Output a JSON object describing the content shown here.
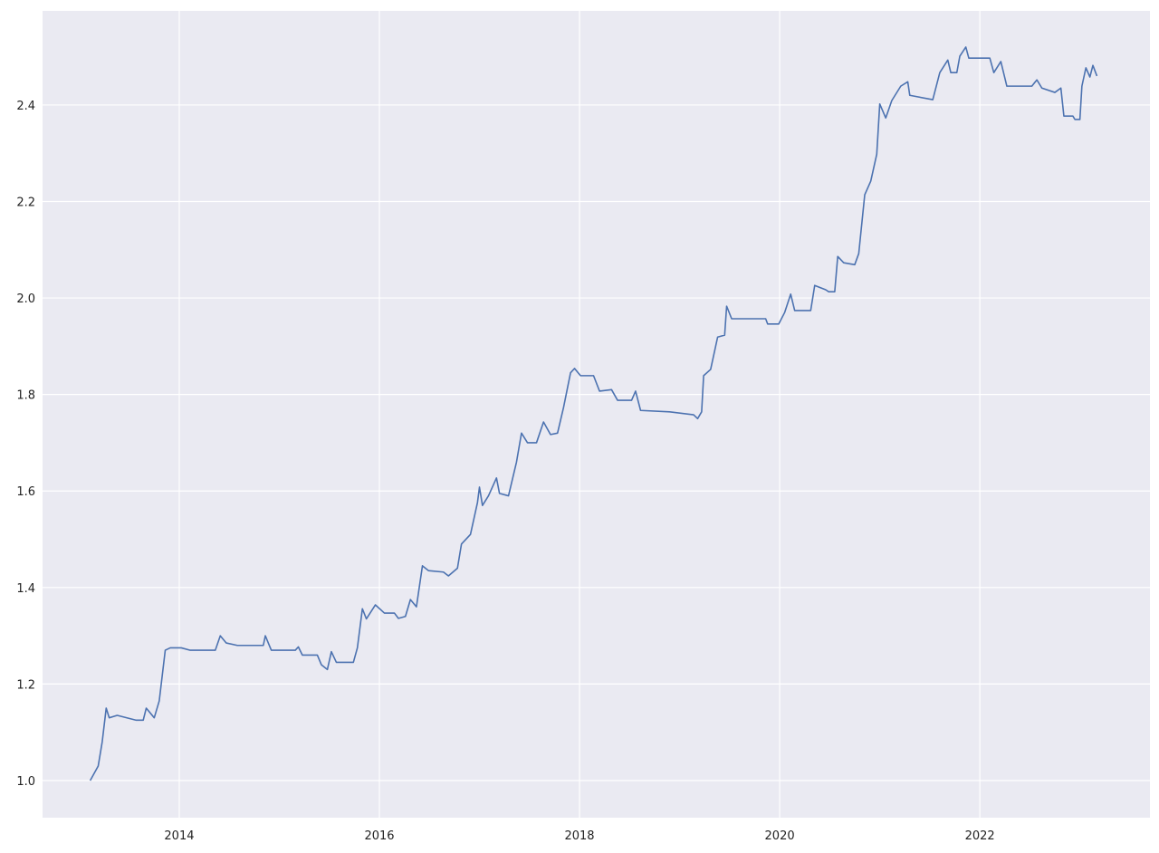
{
  "chart_data": {
    "type": "line",
    "color": "#4c72b0",
    "grid": true,
    "xlim": [
      2012.634,
      2023.7
    ],
    "xticks": [
      2014,
      2016,
      2018,
      2020,
      2022
    ],
    "ylim": [
      0.923,
      2.595
    ],
    "yticks": [
      {
        "value": 1.0,
        "label": "1.0"
      },
      1.2,
      1.4,
      1.6,
      1.8,
      {
        "value": 2.0,
        "label": "2.0"
      },
      2.2,
      2.4
    ],
    "x": [
      2013.11,
      2013.19,
      2013.23,
      2013.27,
      2013.3,
      2013.38,
      2013.57,
      2013.64,
      2013.67,
      2013.75,
      2013.8,
      2013.86,
      2013.91,
      2014.02,
      2014.11,
      2014.36,
      2014.41,
      2014.47,
      2014.58,
      2014.84,
      2014.86,
      2014.9,
      2014.92,
      2015.16,
      2015.19,
      2015.23,
      2015.38,
      2015.42,
      2015.48,
      2015.52,
      2015.57,
      2015.74,
      2015.78,
      2015.83,
      2015.87,
      2015.96,
      2016.05,
      2016.15,
      2016.19,
      2016.26,
      2016.31,
      2016.37,
      2016.43,
      2016.49,
      2016.64,
      2016.69,
      2016.78,
      2016.82,
      2016.91,
      2016.98,
      2017.0,
      2017.03,
      2017.09,
      2017.17,
      2017.2,
      2017.29,
      2017.37,
      2017.42,
      2017.48,
      2017.57,
      2017.64,
      2017.71,
      2017.78,
      2017.84,
      2017.91,
      2017.95,
      2018.01,
      2018.14,
      2018.2,
      2018.32,
      2018.38,
      2018.52,
      2018.56,
      2018.61,
      2018.9,
      2019.14,
      2019.18,
      2019.22,
      2019.24,
      2019.31,
      2019.38,
      2019.45,
      2019.47,
      2019.52,
      2019.86,
      2019.88,
      2019.99,
      2020.05,
      2020.11,
      2020.15,
      2020.31,
      2020.35,
      2020.46,
      2020.49,
      2020.55,
      2020.58,
      2020.64,
      2020.75,
      2020.79,
      2020.85,
      2020.91,
      2020.97,
      2021.0,
      2021.06,
      2021.12,
      2021.21,
      2021.28,
      2021.3,
      2021.53,
      2021.6,
      2021.68,
      2021.71,
      2021.77,
      2021.8,
      2021.86,
      2021.89,
      2022.1,
      2022.14,
      2022.21,
      2022.27,
      2022.52,
      2022.57,
      2022.62,
      2022.75,
      2022.81,
      2022.84,
      2022.93,
      2022.95,
      2023.0,
      2023.02,
      2023.06,
      2023.1,
      2023.13,
      2023.17
    ],
    "values": [
      1.0,
      1.03,
      1.08,
      1.15,
      1.13,
      1.135,
      1.125,
      1.125,
      1.15,
      1.13,
      1.165,
      1.27,
      1.275,
      1.275,
      1.27,
      1.27,
      1.3,
      1.285,
      1.28,
      1.28,
      1.3,
      1.28,
      1.27,
      1.27,
      1.277,
      1.26,
      1.26,
      1.24,
      1.23,
      1.267,
      1.245,
      1.245,
      1.275,
      1.356,
      1.335,
      1.364,
      1.347,
      1.347,
      1.336,
      1.34,
      1.375,
      1.36,
      1.445,
      1.435,
      1.432,
      1.424,
      1.44,
      1.49,
      1.51,
      1.576,
      1.608,
      1.57,
      1.59,
      1.627,
      1.595,
      1.59,
      1.66,
      1.72,
      1.7,
      1.7,
      1.743,
      1.717,
      1.72,
      1.773,
      1.845,
      1.854,
      1.839,
      1.839,
      1.807,
      1.81,
      1.788,
      1.788,
      1.807,
      1.767,
      1.764,
      1.758,
      1.75,
      1.764,
      1.839,
      1.852,
      1.919,
      1.923,
      1.983,
      1.957,
      1.957,
      1.946,
      1.946,
      1.97,
      2.008,
      1.974,
      1.974,
      2.026,
      2.017,
      2.013,
      2.013,
      2.086,
      2.073,
      2.069,
      2.092,
      2.214,
      2.242,
      2.298,
      2.402,
      2.373,
      2.409,
      2.439,
      2.448,
      2.42,
      2.411,
      2.467,
      2.493,
      2.467,
      2.467,
      2.501,
      2.52,
      2.497,
      2.497,
      2.467,
      2.49,
      2.439,
      2.439,
      2.452,
      2.435,
      2.426,
      2.435,
      2.377,
      2.377,
      2.37,
      2.37,
      2.439,
      2.477,
      2.458,
      2.482,
      2.46
    ]
  }
}
